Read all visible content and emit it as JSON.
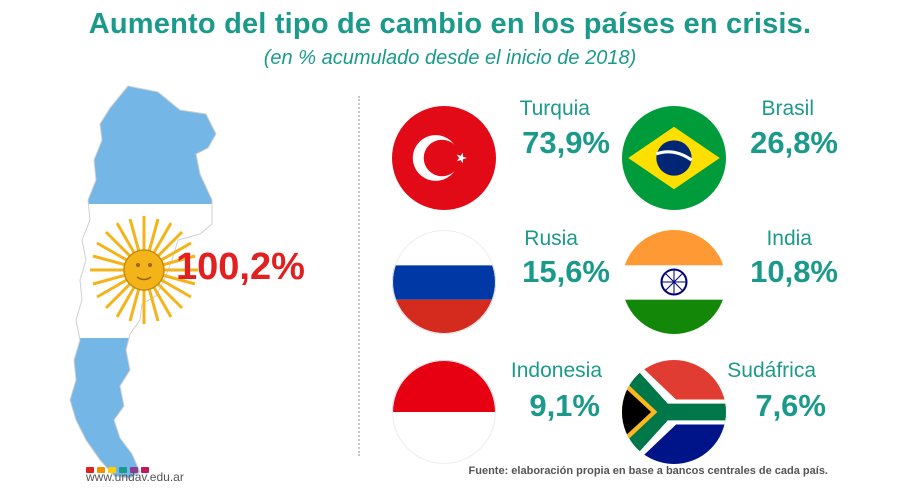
{
  "header": {
    "title": "Aumento del tipo de cambio en los países en crisis.",
    "subtitle": "(en % acumulado desde el inicio de 2018)"
  },
  "chart_data": {
    "type": "table",
    "unit": "%",
    "rows": [
      {
        "country": "Argentina",
        "value": 100.2,
        "label": "100,2%",
        "icon": "argentina-map-icon",
        "color": "#e1201f"
      },
      {
        "country": "Turquia",
        "value": 73.9,
        "label": "73,9%",
        "icon": "turkey-flag-icon"
      },
      {
        "country": "Brasil",
        "value": 26.8,
        "label": "26,8%",
        "icon": "brazil-flag-icon"
      },
      {
        "country": "Rusia",
        "value": 15.6,
        "label": "15,6%",
        "icon": "russia-flag-icon"
      },
      {
        "country": "India",
        "value": 10.8,
        "label": "10,8%",
        "icon": "india-flag-icon"
      },
      {
        "country": "Indonesia",
        "value": 9.1,
        "label": "9,1%",
        "icon": "indonesia-flag-icon"
      },
      {
        "country": "Sudáfrica",
        "value": 7.6,
        "label": "7,6%",
        "icon": "south-africa-flag-icon"
      }
    ]
  },
  "footer": {
    "website": "www.undav.edu.ar",
    "source": "Fuente: elaboración propia en base a bancos centrales de cada país.",
    "dot_colors": [
      "#e1201f",
      "#f39200",
      "#ffcc00",
      "#1b9a8c",
      "#8e3a8e",
      "#c2185b"
    ]
  },
  "colors": {
    "accent": "#1b9a8c",
    "highlight": "#e1201f",
    "argentina_blue": "#74b6e6"
  }
}
